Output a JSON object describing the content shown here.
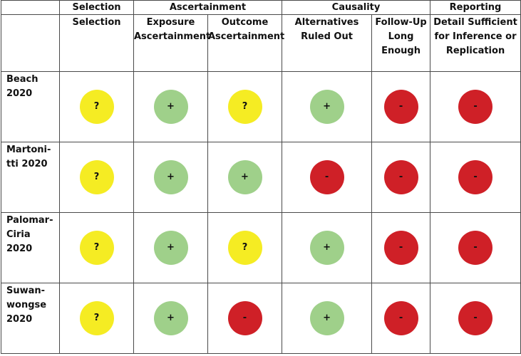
{
  "colors": {
    "?": "#f5ec23",
    "+": "#9fd08a",
    "-": "#cf2027"
  },
  "header": {
    "groups": [
      {
        "label": "Selection",
        "span": 1
      },
      {
        "label": "Ascertainment",
        "span": 2
      },
      {
        "label": "Causality",
        "span": 2
      },
      {
        "label": "Reporting",
        "span": 1
      }
    ],
    "columns": [
      "Selection",
      "Exposure Ascertainment",
      "Outcome Ascertainment",
      "Alternatives Ruled Out",
      "Follow-Up Long Enough",
      "Detail Sufficient for Inference or Replication"
    ]
  },
  "rows": [
    {
      "study": "Beach 2020",
      "ratings": [
        "?",
        "+",
        "?",
        "+",
        "-",
        "-"
      ]
    },
    {
      "study": "Martoni-tti 2020",
      "ratings": [
        "?",
        "+",
        "+",
        "-",
        "-",
        "-"
      ]
    },
    {
      "study": "Palomar-Ciria 2020",
      "ratings": [
        "?",
        "+",
        "?",
        "+",
        "-",
        "-"
      ]
    },
    {
      "study": "Suwan-wongse 2020",
      "ratings": [
        "?",
        "+",
        "-",
        "+",
        "-",
        "-"
      ]
    }
  ]
}
